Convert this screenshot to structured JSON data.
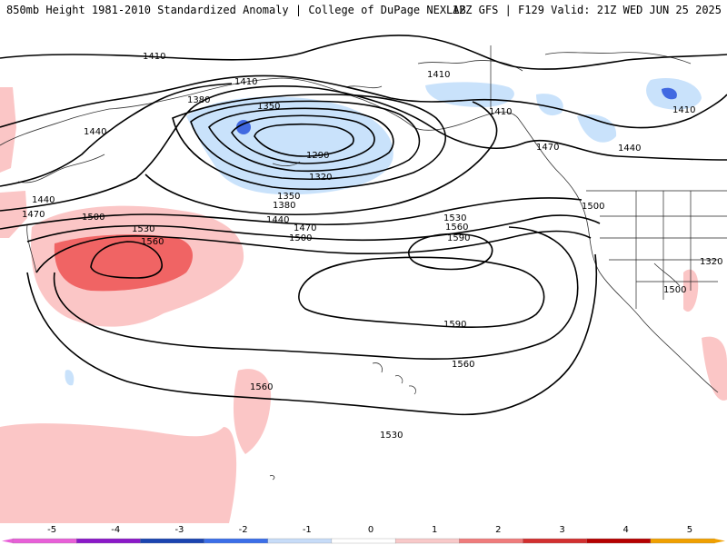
{
  "header": {
    "left_title": "850mb Height 1981-2010 Standardized Anomaly | College of DuPage NEXLAB",
    "right_title": "12Z GFS | F129 Valid: 21Z WED JUN 25 2025"
  },
  "map": {
    "contour_labels": [
      "1410",
      "1410",
      "1410",
      "1410",
      "1410",
      "1440",
      "1440",
      "1440",
      "1470",
      "1470",
      "1500",
      "1500",
      "1500",
      "1530",
      "1530",
      "1530",
      "1560",
      "1560",
      "1560",
      "1560",
      "1590",
      "1590",
      "1500",
      "1350",
      "1350",
      "1380",
      "1380",
      "1290",
      "1320",
      "1320",
      "1440",
      "1470"
    ],
    "anomaly_colors": {
      "neg1": "#c9e2fb",
      "neg2": "#8cb8f2",
      "neg3": "#4169e1",
      "pos1": "#fbc6c6",
      "pos2": "#f06464"
    }
  },
  "colorbar": {
    "ticks": [
      "-5",
      "-4",
      "-3",
      "-2",
      "-1",
      "0",
      "1",
      "2",
      "3",
      "4",
      "5"
    ],
    "colors": [
      "#e85fd8",
      "#8a18c8",
      "#1a44b0",
      "#3b6ee8",
      "#c7dcf8",
      "#ffffff",
      "#f8c9c9",
      "#ef7b7b",
      "#d22f2f",
      "#b50000",
      "#f0a000"
    ]
  }
}
